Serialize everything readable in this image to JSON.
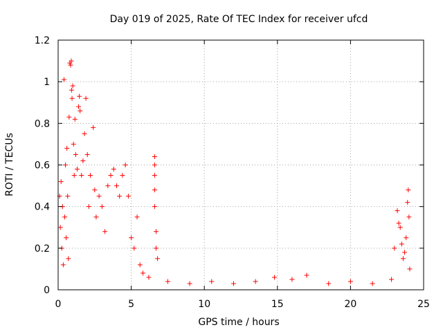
{
  "chart_data": {
    "type": "scatter",
    "title": "Day 019 of 2025, Rate Of TEC Index for receiver ufcd",
    "xlabel": "GPS time / hours",
    "ylabel": "ROTI / TECUs",
    "xlim": [
      0,
      25
    ],
    "ylim": [
      0,
      1.2
    ],
    "x_ticks": [
      0,
      5,
      10,
      15,
      20,
      25
    ],
    "x_tick_labels": [
      "0",
      "5",
      "10",
      "15",
      "20",
      "25"
    ],
    "y_ticks": [
      0,
      0.2,
      0.4,
      0.6,
      0.8,
      1.0,
      1.2
    ],
    "y_tick_labels": [
      "0",
      "0.2",
      "0.4",
      "0.6",
      "0.8",
      "1",
      "1.2"
    ],
    "grid": true,
    "marker": "plus",
    "series": [
      {
        "color": "#ff0000",
        "points": [
          [
            0.1,
            0.45
          ],
          [
            0.15,
            0.3
          ],
          [
            0.2,
            0.52
          ],
          [
            0.25,
            0.2
          ],
          [
            0.3,
            0.4
          ],
          [
            0.35,
            0.12
          ],
          [
            0.4,
            1.01
          ],
          [
            0.45,
            0.35
          ],
          [
            0.5,
            0.6
          ],
          [
            0.55,
            0.25
          ],
          [
            0.6,
            0.68
          ],
          [
            0.65,
            0.45
          ],
          [
            0.7,
            0.15
          ],
          [
            0.75,
            0.83
          ],
          [
            0.8,
            1.09
          ],
          [
            0.85,
            1.08
          ],
          [
            0.9,
            1.1
          ],
          [
            0.92,
            0.96
          ],
          [
            0.95,
            0.92
          ],
          [
            1.0,
            0.98
          ],
          [
            1.05,
            0.7
          ],
          [
            1.1,
            0.55
          ],
          [
            1.15,
            0.82
          ],
          [
            1.2,
            0.65
          ],
          [
            1.3,
            0.58
          ],
          [
            1.4,
            0.88
          ],
          [
            1.45,
            0.93
          ],
          [
            1.5,
            0.86
          ],
          [
            1.6,
            0.55
          ],
          [
            1.7,
            0.62
          ],
          [
            1.8,
            0.75
          ],
          [
            1.9,
            0.92
          ],
          [
            2.0,
            0.65
          ],
          [
            2.1,
            0.4
          ],
          [
            2.2,
            0.55
          ],
          [
            2.4,
            0.78
          ],
          [
            2.5,
            0.48
          ],
          [
            2.6,
            0.35
          ],
          [
            2.8,
            0.45
          ],
          [
            3.0,
            0.4
          ],
          [
            3.2,
            0.28
          ],
          [
            3.4,
            0.5
          ],
          [
            3.6,
            0.55
          ],
          [
            3.8,
            0.58
          ],
          [
            4.0,
            0.5
          ],
          [
            4.2,
            0.45
          ],
          [
            4.4,
            0.55
          ],
          [
            4.6,
            0.6
          ],
          [
            4.8,
            0.45
          ],
          [
            5.0,
            0.25
          ],
          [
            5.2,
            0.2
          ],
          [
            5.4,
            0.35
          ],
          [
            5.6,
            0.12
          ],
          [
            5.8,
            0.08
          ],
          [
            6.2,
            0.06
          ],
          [
            6.6,
            0.64
          ],
          [
            6.6,
            0.6
          ],
          [
            6.6,
            0.55
          ],
          [
            6.6,
            0.48
          ],
          [
            6.6,
            0.4
          ],
          [
            6.7,
            0.28
          ],
          [
            6.7,
            0.2
          ],
          [
            6.8,
            0.15
          ],
          [
            7.5,
            0.04
          ],
          [
            9.0,
            0.03
          ],
          [
            10.5,
            0.04
          ],
          [
            12.0,
            0.03
          ],
          [
            13.5,
            0.04
          ],
          [
            14.8,
            0.06
          ],
          [
            16.0,
            0.05
          ],
          [
            17.0,
            0.07
          ],
          [
            18.5,
            0.03
          ],
          [
            20.0,
            0.04
          ],
          [
            21.5,
            0.03
          ],
          [
            22.8,
            0.05
          ],
          [
            23.0,
            0.2
          ],
          [
            23.2,
            0.38
          ],
          [
            23.3,
            0.32
          ],
          [
            23.4,
            0.3
          ],
          [
            23.5,
            0.22
          ],
          [
            23.6,
            0.15
          ],
          [
            23.7,
            0.18
          ],
          [
            23.8,
            0.25
          ],
          [
            23.9,
            0.42
          ],
          [
            23.95,
            0.48
          ],
          [
            24.0,
            0.35
          ],
          [
            24.05,
            0.1
          ]
        ]
      }
    ]
  }
}
